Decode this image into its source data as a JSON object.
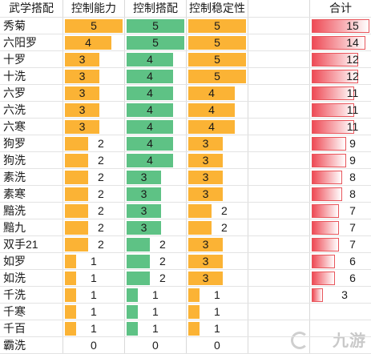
{
  "headers": {
    "combo": "武学搭配",
    "control": "控制能力",
    "match": "控制搭配",
    "stable": "控制稳定性",
    "total": "合计"
  },
  "colors": {
    "control": "#fbb335",
    "match": "#5ec285",
    "stable": "#fbb335",
    "total_border": "#e8565c",
    "total_fill_start": "#ee4a55",
    "total_fill_end": "#ffffff"
  },
  "scale_max": {
    "control": 5,
    "match": 5,
    "stable": 5,
    "total": 15
  },
  "rows": [
    {
      "name": "秀菊",
      "control": 5,
      "match": 5,
      "stable": 5,
      "total": 15
    },
    {
      "name": "六阳罗",
      "control": 4,
      "match": 5,
      "stable": 5,
      "total": 14
    },
    {
      "name": "十罗",
      "control": 3,
      "match": 4,
      "stable": 5,
      "total": 12
    },
    {
      "name": "十洗",
      "control": 3,
      "match": 4,
      "stable": 5,
      "total": 12
    },
    {
      "name": "六罗",
      "control": 3,
      "match": 4,
      "stable": 4,
      "total": 11
    },
    {
      "name": "六洗",
      "control": 3,
      "match": 4,
      "stable": 4,
      "total": 11
    },
    {
      "name": "六寒",
      "control": 3,
      "match": 4,
      "stable": 4,
      "total": 11
    },
    {
      "name": "狗罗",
      "control": 2,
      "match": 4,
      "stable": 3,
      "total": 9
    },
    {
      "name": "狗洗",
      "control": 2,
      "match": 4,
      "stable": 3,
      "total": 9
    },
    {
      "name": "素洗",
      "control": 2,
      "match": 3,
      "stable": 3,
      "total": 8
    },
    {
      "name": "素寒",
      "control": 2,
      "match": 3,
      "stable": 3,
      "total": 8
    },
    {
      "name": "黯洗",
      "control": 2,
      "match": 3,
      "stable": 2,
      "total": 7
    },
    {
      "name": "黯九",
      "control": 2,
      "match": 3,
      "stable": 2,
      "total": 7
    },
    {
      "name": "双手21",
      "control": 2,
      "match": 2,
      "stable": 3,
      "total": 7
    },
    {
      "name": "如罗",
      "control": 1,
      "match": 2,
      "stable": 3,
      "total": 6
    },
    {
      "name": "如洗",
      "control": 1,
      "match": 2,
      "stable": 3,
      "total": 6
    },
    {
      "name": "千洗",
      "control": 1,
      "match": 1,
      "stable": 1,
      "total": 3
    },
    {
      "name": "千寒",
      "control": 1,
      "match": 1,
      "stable": 1,
      "total": ""
    },
    {
      "name": "千百",
      "control": 1,
      "match": 1,
      "stable": 1,
      "total": ""
    },
    {
      "name": "霸洗",
      "control": 0,
      "match": 0,
      "stable": 0,
      "total": ""
    }
  ],
  "watermark": "九游"
}
